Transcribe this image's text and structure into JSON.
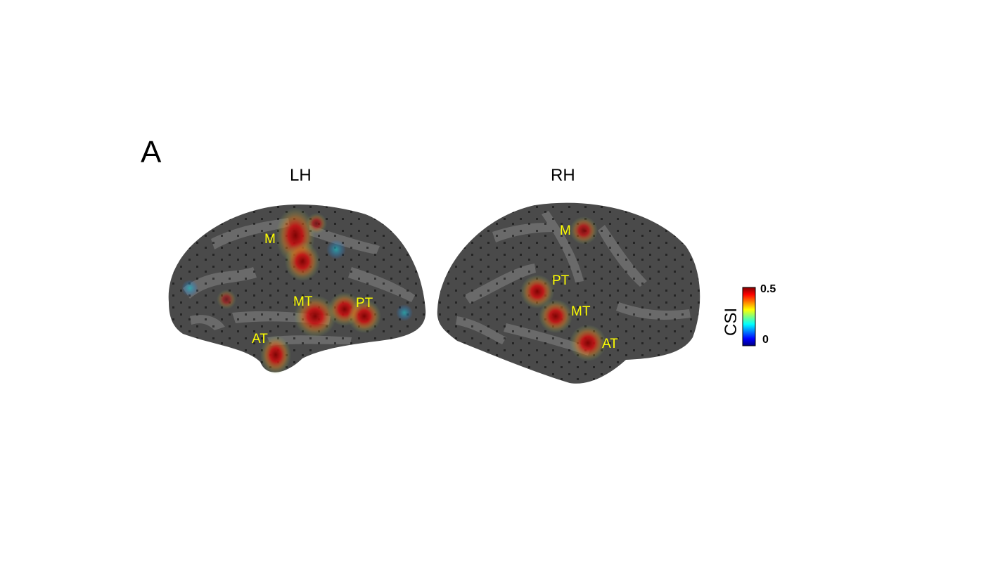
{
  "panel_label": "A",
  "hemispheres": [
    {
      "title": "LH",
      "regions": [
        "M",
        "MT",
        "PT",
        "AT"
      ]
    },
    {
      "title": "RH",
      "regions": [
        "M",
        "PT",
        "MT",
        "AT"
      ]
    }
  ],
  "colorbar": {
    "label": "CSI",
    "max_label": "0.5",
    "min_label": "0",
    "colormap": [
      "#00007f",
      "#0000ff",
      "#00ffff",
      "#7fff7f",
      "#ffff00",
      "#ff7f00",
      "#ff0000",
      "#7f0000"
    ]
  },
  "colors": {
    "label": "#ffff00",
    "cortex_dark": "#4a4a4a",
    "cortex_light": "#6e6e6e"
  }
}
